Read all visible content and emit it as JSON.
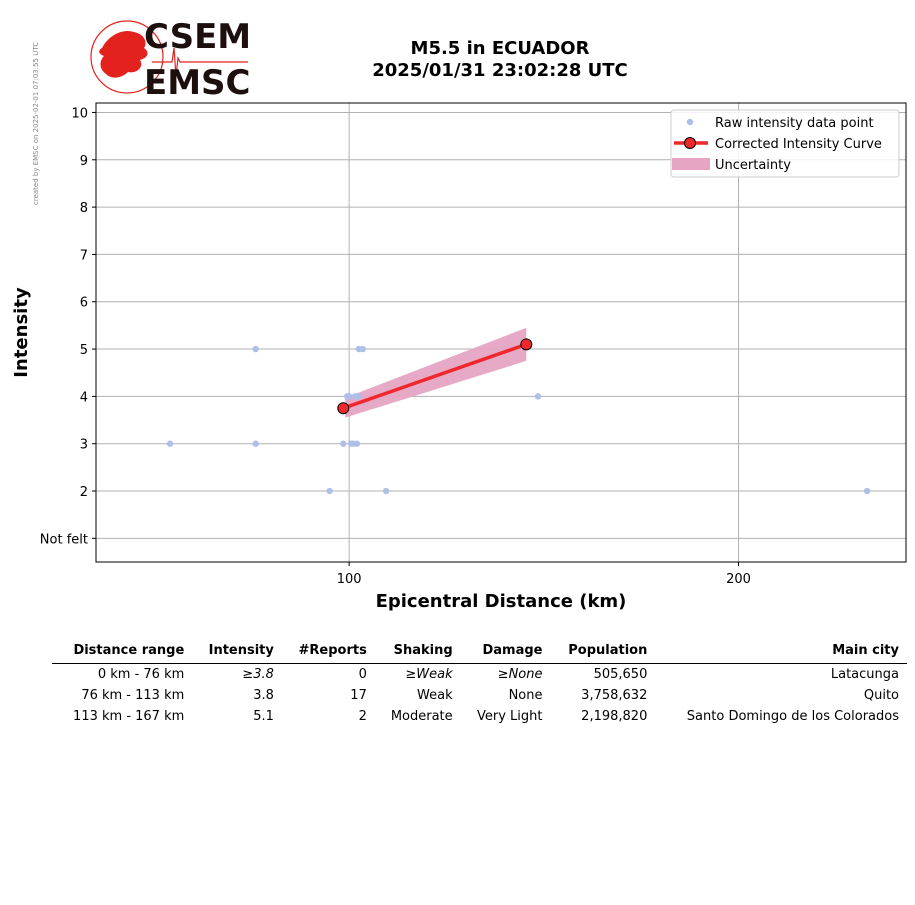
{
  "watermark": "created by EMSC on 2025-02-01 07:03:55 UTC",
  "logo": {
    "top": "CSEM",
    "bottom": "EMSC",
    "color_red": "#e3221e"
  },
  "header": {
    "line1": "M5.5 in ECUADOR",
    "line2": "2025/01/31 23:02:28 UTC"
  },
  "chart_data": {
    "type": "scatter",
    "xlabel": "Epicentral Distance (km)",
    "ylabel": "Intensity",
    "xlim": [
      35,
      243
    ],
    "ylim": [
      0.5,
      10.2
    ],
    "x_ticks": [
      100,
      200
    ],
    "y_ticks": [
      1,
      2,
      3,
      4,
      5,
      6,
      7,
      8,
      9,
      10
    ],
    "y_tick_labels": [
      "Not felt",
      "2",
      "3",
      "4",
      "5",
      "6",
      "7",
      "8",
      "9",
      "10"
    ],
    "grid": true,
    "legend_position": "top-right",
    "series": [
      {
        "name": "Raw intensity data point",
        "color": "#aebfe8",
        "points": [
          [
            54,
            3
          ],
          [
            76,
            5
          ],
          [
            76,
            3
          ],
          [
            95,
            2
          ],
          [
            98.5,
            3
          ],
          [
            99.5,
            4
          ],
          [
            100,
            4
          ],
          [
            100.5,
            3
          ],
          [
            101,
            3
          ],
          [
            101.5,
            4
          ],
          [
            102,
            3
          ],
          [
            102.5,
            4
          ],
          [
            102.5,
            5
          ],
          [
            103.5,
            5
          ],
          [
            109.5,
            2
          ],
          [
            148.5,
            4
          ],
          [
            233,
            2
          ]
        ]
      },
      {
        "name": "Corrected Intensity Curve",
        "color": "#f0282d",
        "points": [
          [
            98.5,
            3.75
          ],
          [
            145.5,
            5.1
          ]
        ]
      },
      {
        "name": "Uncertainty",
        "color": "#e6a5c3",
        "band": [
          [
            99,
            3.55,
            3.97
          ],
          [
            145.5,
            4.75,
            5.45
          ]
        ]
      }
    ]
  },
  "table": {
    "headers": [
      "Distance range",
      "Intensity",
      "#Reports",
      "Shaking",
      "Damage",
      "Population",
      "Main city"
    ],
    "rows": [
      {
        "range": "0 km -   76 km",
        "intensity": "≥3.8",
        "reports": "0",
        "shaking": "≥Weak",
        "damage": "≥None",
        "population": "505,650",
        "city": "Latacunga"
      },
      {
        "range": "76 km -  113 km",
        "intensity": "3.8",
        "reports": "17",
        "shaking": "Weak",
        "damage": "None",
        "population": "3,758,632",
        "city": "Quito"
      },
      {
        "range": "113 km -  167 km",
        "intensity": "5.1",
        "reports": "2",
        "shaking": "Moderate",
        "damage": "Very Light",
        "population": "2,198,820",
        "city": "Santo Domingo de los Colorados"
      }
    ]
  }
}
